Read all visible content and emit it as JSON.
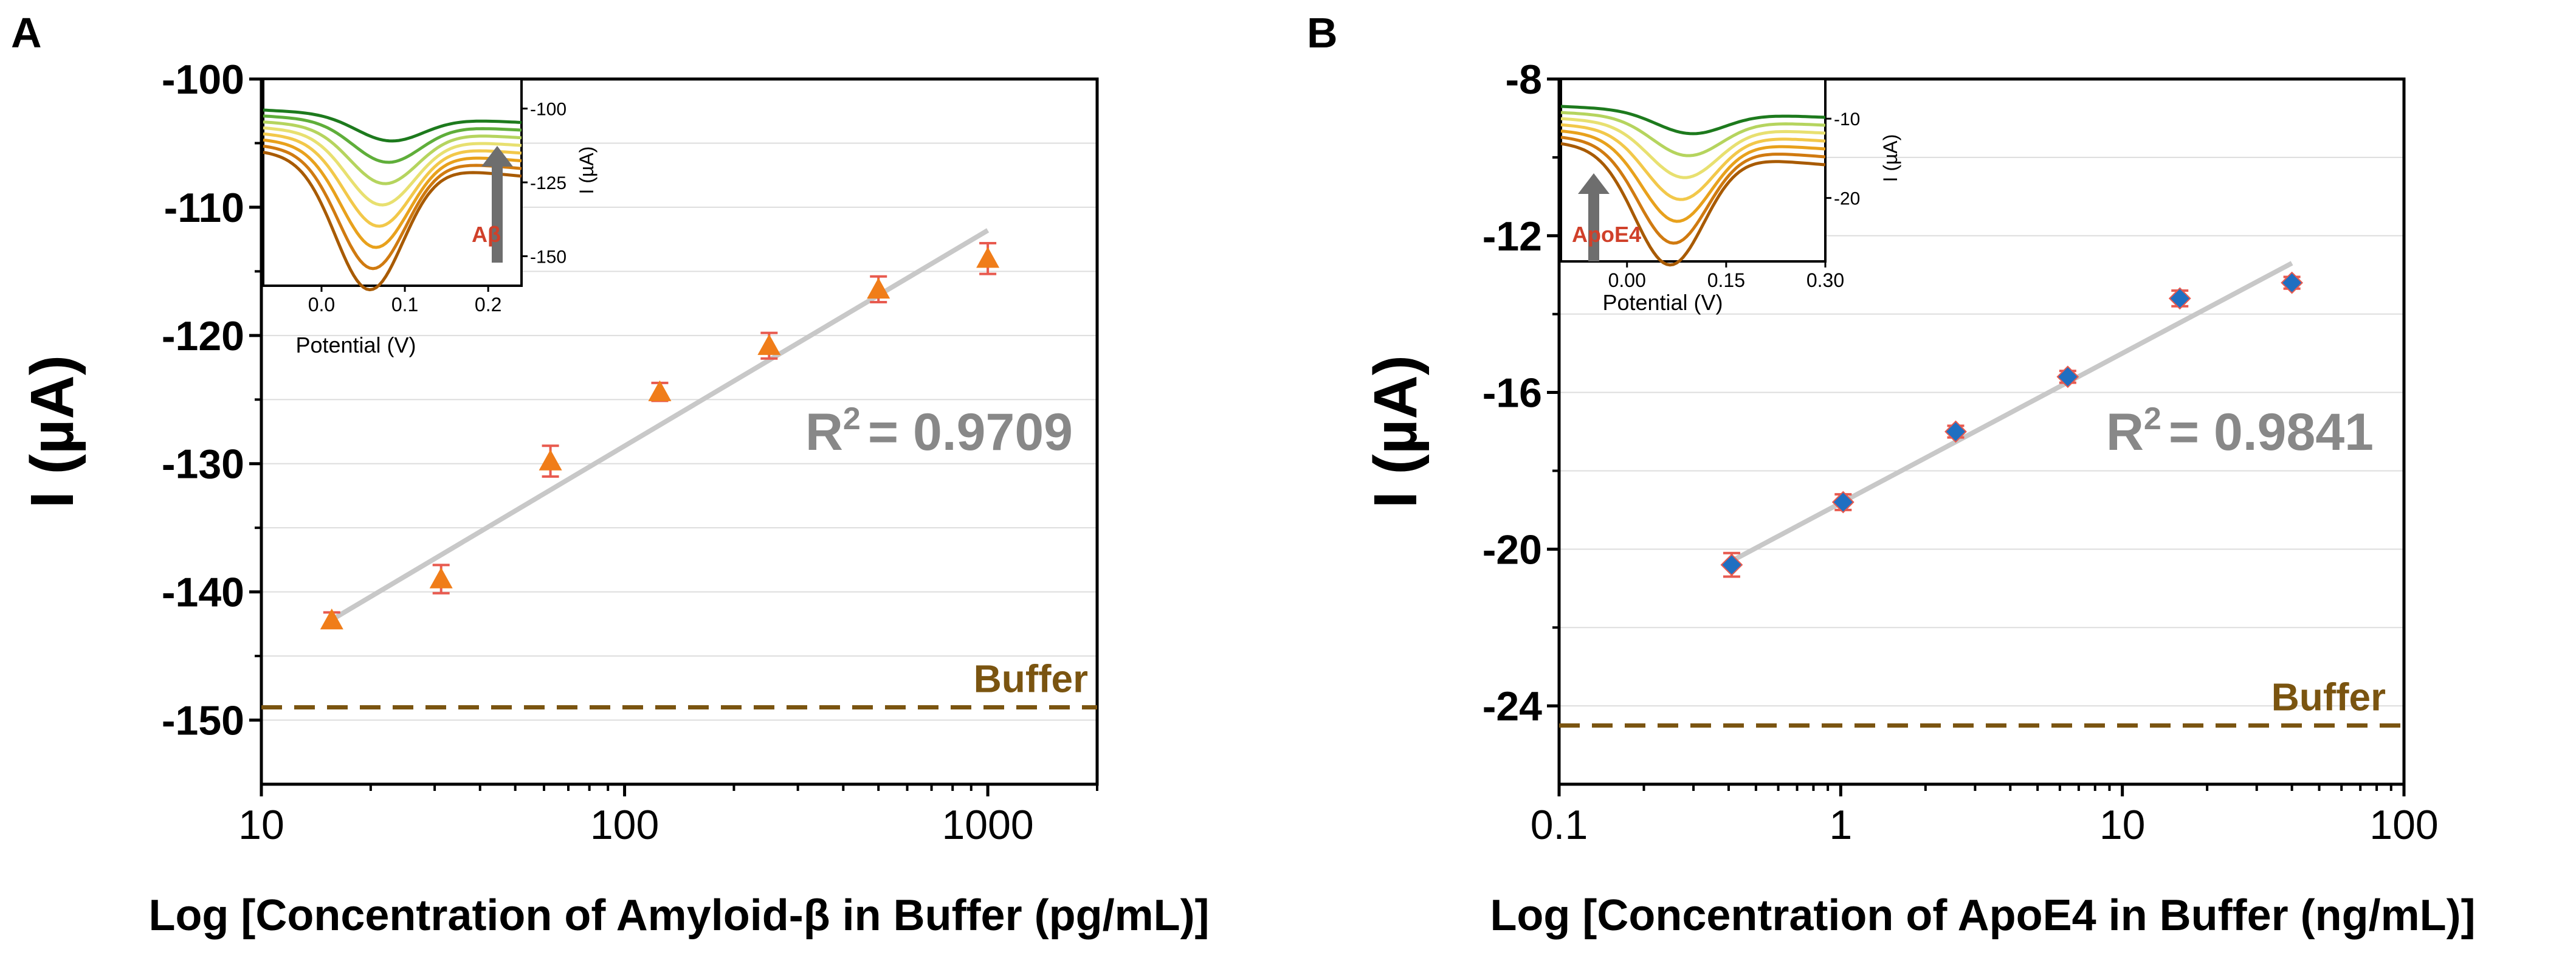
{
  "chart_data": [
    {
      "panel_label": "A",
      "type": "scatter",
      "xscale": "log",
      "xlim": [
        10,
        2000
      ],
      "ylim": [
        -155,
        -100
      ],
      "xticks": [
        "10",
        "100",
        "1000"
      ],
      "yticks": [
        "-100",
        "-110",
        "-120",
        "-130",
        "-140",
        "-150"
      ],
      "xlabel": "Log [Concentration of Amyloid-β in Buffer (pg/mL)]",
      "ylabel": "I (µA)",
      "grid": "horizontal minor",
      "series": [
        {
          "name": "Amyloid-β",
          "marker": "triangle",
          "color": "#f07d19",
          "error_color": "#e85a4f",
          "x": [
            15.625,
            31.25,
            62.5,
            125,
            250,
            500,
            1000
          ],
          "y": [
            -142.2,
            -139.0,
            -129.8,
            -124.4,
            -120.8,
            -116.4,
            -114.0
          ],
          "yerr": [
            0.6,
            1.1,
            1.2,
            0.7,
            1.0,
            1.0,
            1.2
          ]
        }
      ],
      "fit": {
        "color": "#c8c8c8",
        "x": [
          16,
          1000
        ],
        "y": [
          -142.0,
          -111.8
        ]
      },
      "r2_label": "R",
      "r2_exp": "2",
      "r2_value": "= 0.9709",
      "r2_color": "#888888",
      "buffer": {
        "label": "Buffer",
        "y": -149.0,
        "color": "#7a5410"
      },
      "inset": {
        "xticks": [
          "0.0",
          "0.1",
          "0.2"
        ],
        "yticks": [
          "-100",
          "-125",
          "-150"
        ],
        "xlabel": "Potential (V)",
        "ylabel": "I (µA)",
        "arrow_label": "Aβ",
        "arrow_label_color": "#d0402a",
        "arrow_direction": "up",
        "curve_colors": [
          "#a85a00",
          "#d07a10",
          "#e8a11c",
          "#f2c84a",
          "#e8e070",
          "#b5d45e",
          "#5fae3a",
          "#1d7a1d"
        ]
      }
    },
    {
      "panel_label": "B",
      "type": "scatter",
      "xscale": "log",
      "xlim": [
        0.1,
        100
      ],
      "ylim": [
        -26,
        -8
      ],
      "xticks": [
        "0.1",
        "1",
        "10",
        "100"
      ],
      "yticks": [
        "-8",
        "-12",
        "-16",
        "-20",
        "-24"
      ],
      "xlabel": "Log [Concentration of ApoE4 in Buffer (ng/mL)]",
      "ylabel": "I (µA)",
      "grid": "horizontal minor",
      "series": [
        {
          "name": "ApoE4",
          "marker": "diamond",
          "color": "#1f6fc1",
          "error_color": "#e85a4f",
          "x": [
            0.41,
            1.02,
            2.56,
            6.4,
            16,
            40
          ],
          "y": [
            -20.4,
            -18.8,
            -17.0,
            -15.6,
            -13.6,
            -13.2
          ],
          "yerr": [
            0.3,
            0.2,
            0.15,
            0.15,
            0.2,
            0.15
          ]
        }
      ],
      "fit": {
        "color": "#c8c8c8",
        "x": [
          0.41,
          40
        ],
        "y": [
          -20.3,
          -12.7
        ]
      },
      "r2_label": "R",
      "r2_exp": "2",
      "r2_value": "= 0.9841",
      "r2_color": "#888888",
      "buffer": {
        "label": "Buffer",
        "y": -24.5,
        "color": "#7a5410"
      },
      "inset": {
        "xticks": [
          "0.00",
          "0.15",
          "0.30"
        ],
        "yticks": [
          "-10",
          "-20"
        ],
        "xlabel": "Potential (V)",
        "ylabel": "I (µA)",
        "arrow_label": "ApoE4",
        "arrow_label_color": "#d0402a",
        "arrow_direction": "up",
        "curve_colors": [
          "#a85a00",
          "#d07a10",
          "#e8a11c",
          "#f2c84a",
          "#e8e070",
          "#b5d45e",
          "#1d7a1d"
        ]
      }
    }
  ]
}
